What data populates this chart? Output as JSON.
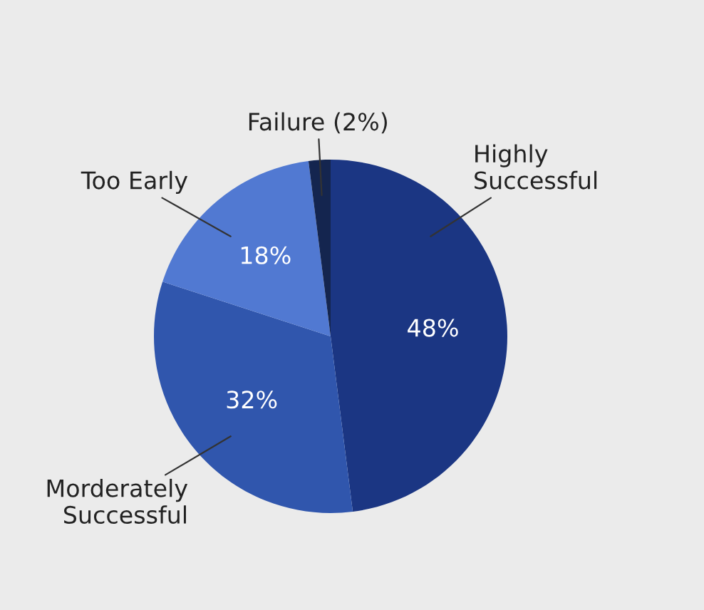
{
  "chart_data": {
    "type": "pie",
    "categories": [
      "Highly\nSuccessful",
      "Morderately\nSuccessful",
      "Too Early",
      "Failure (2%)"
    ],
    "values": [
      48,
      32,
      18,
      2
    ],
    "colors": [
      "#1b3683",
      "#3056ad",
      "#5179d2",
      "#14254f"
    ],
    "value_labels": [
      "48%",
      "32%",
      "18%",
      null
    ],
    "legend": false
  }
}
